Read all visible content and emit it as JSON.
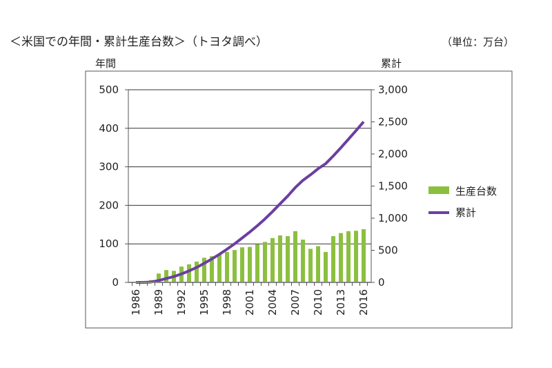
{
  "chart_data": {
    "type": "bar+line",
    "title": "＜米国での年間・累計生産台数＞（トヨタ調べ）",
    "unit_label": "（単位：万台）",
    "ylabel_left": "年間",
    "ylabel_right": "累計",
    "ylim_left": [
      0,
      500
    ],
    "ylim_right": [
      0,
      3000
    ],
    "yticks_left": [
      "0",
      "100",
      "200",
      "300",
      "400",
      "500"
    ],
    "yticks_right": [
      "0",
      "500",
      "1,000",
      "1,500",
      "2,000",
      "2,500",
      "3,000"
    ],
    "xtick_labels": [
      "1986",
      "1989",
      "1992",
      "1995",
      "1998",
      "2001",
      "2004",
      "2007",
      "2010",
      "2013",
      "2016"
    ],
    "grid": true,
    "legend_position": "right",
    "categories": [
      1986,
      1987,
      1988,
      1989,
      1990,
      1991,
      1992,
      1993,
      1994,
      1995,
      1996,
      1997,
      1998,
      1999,
      2000,
      2001,
      2002,
      2003,
      2004,
      2005,
      2006,
      2007,
      2008,
      2009,
      2010,
      2011,
      2012,
      2013,
      2014,
      2015,
      2016
    ],
    "series": [
      {
        "name": "生産台数",
        "type": "bar",
        "axis": "left",
        "color": "#8cbf3f",
        "values": [
          0,
          0,
          6,
          23,
          32,
          30,
          41,
          47,
          54,
          64,
          68,
          73,
          79,
          84,
          91,
          92,
          99,
          105,
          115,
          122,
          120,
          133,
          111,
          87,
          94,
          79,
          120,
          128,
          133,
          134,
          138
        ]
      },
      {
        "name": "累計",
        "type": "line",
        "axis": "right",
        "color": "#6a3fa0",
        "values": [
          0,
          0,
          6,
          29,
          61,
          91,
          132,
          179,
          233,
          297,
          365,
          438,
          517,
          601,
          692,
          784,
          883,
          988,
          1103,
          1225,
          1345,
          1478,
          1589,
          1676,
          1770,
          1849,
          1969,
          2097,
          2230,
          2364,
          2502
        ]
      }
    ]
  }
}
